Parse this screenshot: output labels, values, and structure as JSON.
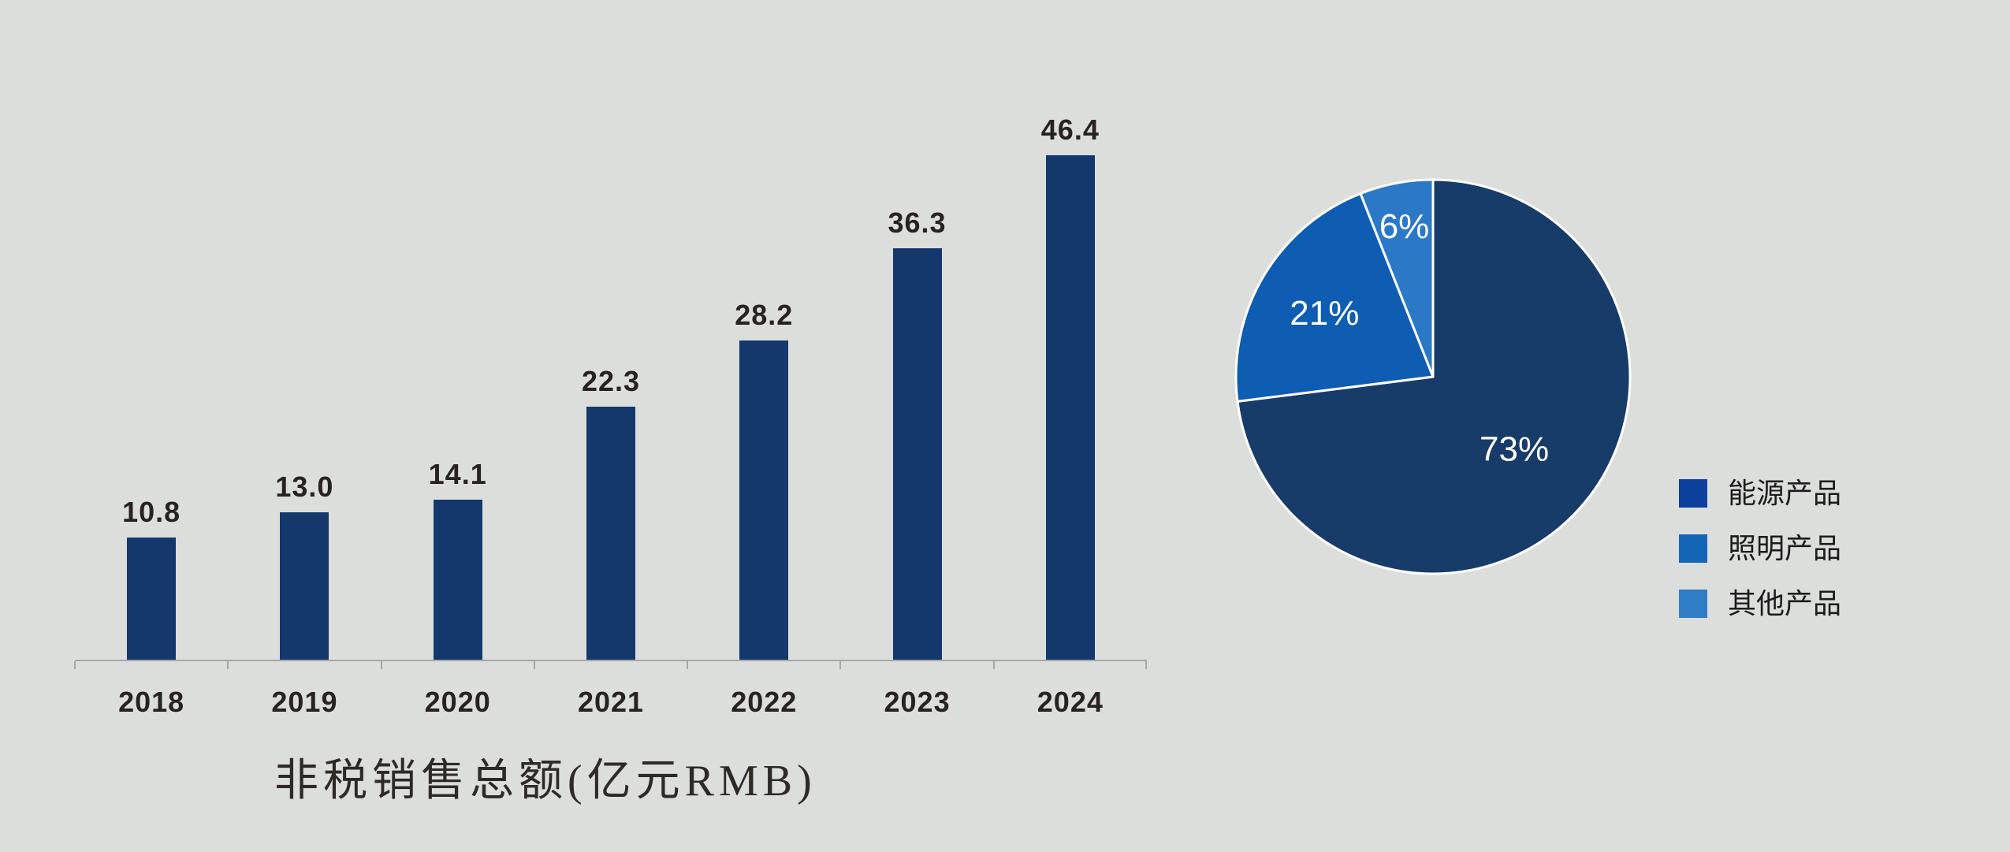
{
  "background_color": "#dcdedc",
  "chart_data": [
    {
      "type": "bar",
      "title": "非税销售总额(亿元RMB)",
      "categories": [
        "2018",
        "2019",
        "2020",
        "2021",
        "2022",
        "2023",
        "2024"
      ],
      "values": [
        10.8,
        13.0,
        14.1,
        22.3,
        28.2,
        36.3,
        46.4
      ],
      "value_labels": [
        "10.8",
        "13.0",
        "14.1",
        "22.3",
        "28.2",
        "36.3",
        "46.4"
      ],
      "xlabel": "",
      "ylabel": "",
      "ylim": [
        0,
        48
      ],
      "grid": false,
      "bar_color": "#14386c",
      "value_label_color": "#282220",
      "tick_label_color": "#282220",
      "axis_color": "#a7a7a7"
    },
    {
      "type": "pie",
      "labels": [
        "能源产品",
        "照明产品",
        "其他产品"
      ],
      "values": [
        73,
        21,
        6
      ],
      "slice_labels": [
        "73%",
        "21%",
        "6%"
      ],
      "slice_colors": [
        "#173c69",
        "#0f5db3",
        "#2b79c6"
      ],
      "legend_colors": [
        "#0d3f9c",
        "#1565b6",
        "#2e7dc5"
      ],
      "slice_label_color": "#ffffff",
      "stroke_color": "#ffffff",
      "start_angle_deg": 0,
      "clockwise": true,
      "legend_position": "right",
      "label_radius_factors": [
        0.55,
        0.64,
        0.78
      ]
    }
  ]
}
